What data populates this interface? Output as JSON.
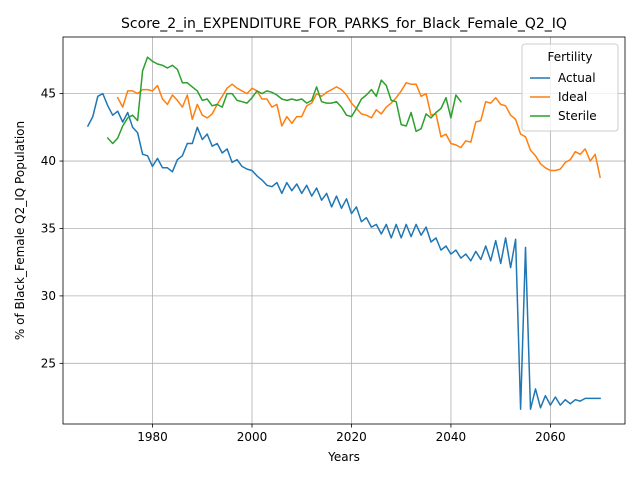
{
  "chart_data": {
    "type": "line",
    "title": "Score_2_in_EXPENDITURE_FOR_PARKS_for_Black_Female_Q2_IQ",
    "xlabel": "Years",
    "ylabel": "% of Black_Female Q2_IQ Population",
    "xlim": [
      1962,
      2075
    ],
    "ylim": [
      20.5,
      49.2
    ],
    "xticks": [
      1980,
      2000,
      2020,
      2040,
      2060
    ],
    "yticks": [
      25,
      30,
      35,
      40,
      45
    ],
    "grid": true,
    "legend": {
      "title": "Fertility",
      "position": "top-right"
    },
    "series": [
      {
        "name": "Actual",
        "color": "#1f77b4",
        "x": [
          1967,
          1968,
          1969,
          1970,
          1971,
          1972,
          1973,
          1974,
          1975,
          1976,
          1977,
          1978,
          1979,
          1980,
          1981,
          1982,
          1983,
          1984,
          1985,
          1986,
          1987,
          1988,
          1989,
          1990,
          1991,
          1992,
          1993,
          1994,
          1995,
          1996,
          1997,
          1998,
          1999,
          2000,
          2001,
          2002,
          2003,
          2004,
          2005,
          2006,
          2007,
          2008,
          2009,
          2010,
          2011,
          2012,
          2013,
          2014,
          2015,
          2016,
          2017,
          2018,
          2019,
          2020,
          2021,
          2022,
          2023,
          2024,
          2025,
          2026,
          2027,
          2028,
          2029,
          2030,
          2031,
          2032,
          2033,
          2034,
          2035,
          2036,
          2037,
          2038,
          2039,
          2040,
          2041,
          2042,
          2043,
          2044,
          2045,
          2046,
          2047,
          2048,
          2049,
          2050,
          2051,
          2052,
          2053,
          2054,
          2055,
          2056,
          2057,
          2058,
          2059,
          2060,
          2061,
          2062,
          2063,
          2064,
          2065,
          2066,
          2067,
          2068,
          2069,
          2070
        ],
        "values": [
          42.6,
          43.3,
          44.8,
          45.0,
          44.1,
          43.4,
          43.7,
          42.9,
          43.6,
          42.5,
          42.1,
          40.5,
          40.4,
          39.6,
          40.2,
          39.5,
          39.5,
          39.2,
          40.1,
          40.4,
          41.3,
          41.3,
          42.5,
          41.6,
          42.0,
          41.1,
          41.3,
          40.6,
          40.9,
          39.9,
          40.1,
          39.6,
          39.4,
          39.3,
          38.9,
          38.6,
          38.2,
          38.1,
          38.4,
          37.6,
          38.4,
          37.8,
          38.3,
          37.6,
          38.2,
          37.4,
          38.0,
          37.1,
          37.6,
          36.6,
          37.4,
          36.5,
          37.2,
          36.1,
          36.6,
          35.5,
          35.8,
          35.1,
          35.3,
          34.6,
          35.3,
          34.3,
          35.3,
          34.3,
          35.3,
          34.4,
          35.3,
          34.5,
          35.1,
          34.0,
          34.3,
          33.4,
          33.7,
          33.1,
          33.4,
          32.8,
          33.1,
          32.6,
          33.3,
          32.7,
          33.7,
          32.6,
          34.1,
          32.4,
          34.3,
          32.1,
          34.2,
          21.6,
          33.6,
          21.6,
          23.1,
          21.7,
          22.6,
          21.9,
          22.5,
          21.9,
          22.3,
          22.0,
          22.3,
          22.2,
          22.4,
          22.4,
          22.4,
          22.4
        ]
      },
      {
        "name": "Ideal",
        "color": "#ff7f0e",
        "x": [
          1973,
          1974,
          1975,
          1976,
          1977,
          1978,
          1979,
          1980,
          1981,
          1982,
          1983,
          1984,
          1985,
          1986,
          1987,
          1988,
          1989,
          1990,
          1991,
          1992,
          1993,
          1994,
          1995,
          1996,
          1997,
          1998,
          1999,
          2000,
          2001,
          2002,
          2003,
          2004,
          2005,
          2006,
          2007,
          2008,
          2009,
          2010,
          2011,
          2012,
          2013,
          2014,
          2015,
          2016,
          2017,
          2018,
          2019,
          2020,
          2021,
          2022,
          2023,
          2024,
          2025,
          2026,
          2027,
          2028,
          2029,
          2030,
          2031,
          2032,
          2033,
          2034,
          2035,
          2036,
          2037,
          2038,
          2039,
          2040,
          2041,
          2042,
          2043,
          2044,
          2045,
          2046,
          2047,
          2048,
          2049,
          2050,
          2051,
          2052,
          2053,
          2054,
          2055,
          2056,
          2057,
          2058,
          2059,
          2060,
          2061,
          2062,
          2063,
          2064,
          2065,
          2066,
          2067,
          2068,
          2069,
          2070
        ],
        "values": [
          44.7,
          44.0,
          45.2,
          45.2,
          45.0,
          45.3,
          45.3,
          45.2,
          45.6,
          44.6,
          44.2,
          44.9,
          44.5,
          44.0,
          44.9,
          43.1,
          44.2,
          43.4,
          43.2,
          43.5,
          44.2,
          44.8,
          45.4,
          45.7,
          45.4,
          45.2,
          45.0,
          45.4,
          45.2,
          44.6,
          44.6,
          44.0,
          44.2,
          42.6,
          43.3,
          42.8,
          43.3,
          43.3,
          44.1,
          44.3,
          45.0,
          44.8,
          45.1,
          45.3,
          45.5,
          45.3,
          44.9,
          44.3,
          43.9,
          43.5,
          43.4,
          43.2,
          43.8,
          43.5,
          44.0,
          44.3,
          44.7,
          45.2,
          45.8,
          45.7,
          45.7,
          44.8,
          45.0,
          43.4,
          43.5,
          41.8,
          42.0,
          41.3,
          41.2,
          41.0,
          41.5,
          41.4,
          42.9,
          43.0,
          44.4,
          44.3,
          44.7,
          44.2,
          44.1,
          43.4,
          43.1,
          42.0,
          41.8,
          40.8,
          40.4,
          39.8,
          39.5,
          39.3,
          39.3,
          39.4,
          39.9,
          40.1,
          40.7,
          40.5,
          40.9,
          40.0,
          40.5,
          38.8
        ]
      },
      {
        "name": "Sterile",
        "color": "#2ca02c",
        "x": [
          1971,
          1972,
          1973,
          1974,
          1975,
          1976,
          1977,
          1978,
          1979,
          1980,
          1981,
          1982,
          1983,
          1984,
          1985,
          1986,
          1987,
          1988,
          1989,
          1990,
          1991,
          1992,
          1993,
          1994,
          1995,
          1996,
          1997,
          1998,
          1999,
          2000,
          2001,
          2002,
          2003,
          2004,
          2005,
          2006,
          2007,
          2008,
          2009,
          2010,
          2011,
          2012,
          2013,
          2014,
          2015,
          2016,
          2017,
          2018,
          2019,
          2020,
          2021,
          2022,
          2023,
          2024,
          2025,
          2026,
          2027,
          2028,
          2029,
          2030,
          2031,
          2032,
          2033,
          2034,
          2035,
          2036,
          2037,
          2038,
          2039,
          2040,
          2041,
          2042
        ],
        "values": [
          41.7,
          41.3,
          41.7,
          42.6,
          43.2,
          43.4,
          43.0,
          46.7,
          47.7,
          47.4,
          47.2,
          47.1,
          46.9,
          47.1,
          46.8,
          45.8,
          45.8,
          45.5,
          45.2,
          44.5,
          44.6,
          44.1,
          44.2,
          44.0,
          45.0,
          45.0,
          44.5,
          44.4,
          44.3,
          44.7,
          45.2,
          45.0,
          45.2,
          45.1,
          44.9,
          44.6,
          44.5,
          44.6,
          44.5,
          44.6,
          44.3,
          44.5,
          45.5,
          44.4,
          44.3,
          44.3,
          44.4,
          44.0,
          43.4,
          43.3,
          43.9,
          44.6,
          44.9,
          45.3,
          44.8,
          46.0,
          45.6,
          44.5,
          44.4,
          42.7,
          42.6,
          43.6,
          42.2,
          42.4,
          43.5,
          43.2,
          43.6,
          43.9,
          44.7,
          43.2,
          44.9,
          44.4
        ]
      }
    ]
  }
}
